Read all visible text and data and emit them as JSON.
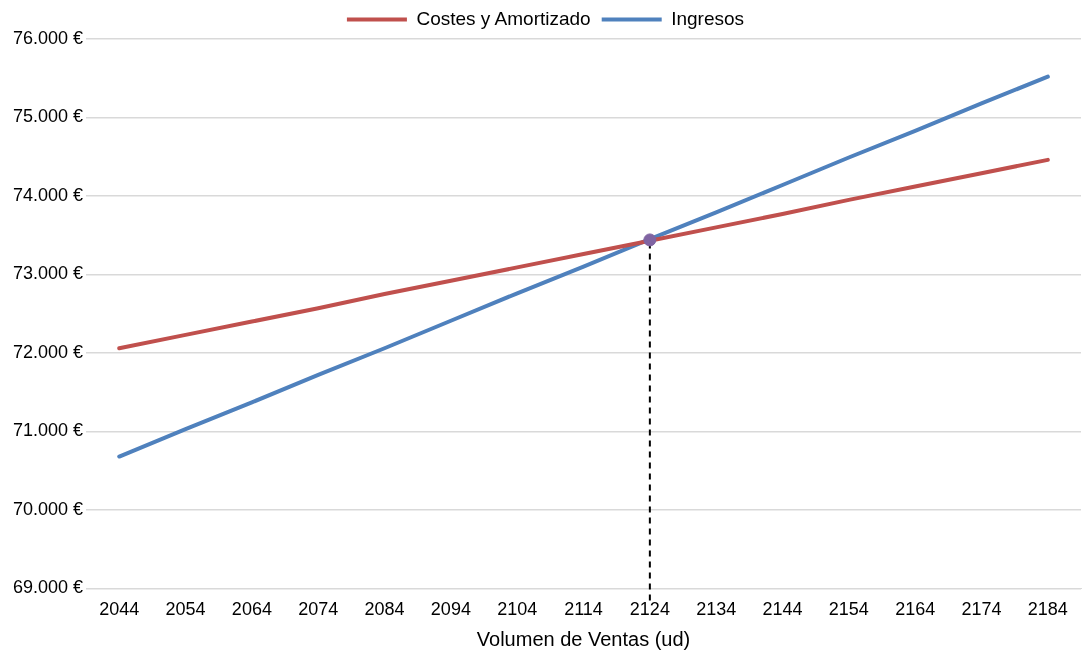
{
  "chart_data": {
    "type": "line",
    "xlabel": "Volumen de Ventas (ud)",
    "categories": [
      "2044",
      "2054",
      "2064",
      "2074",
      "2084",
      "2094",
      "2104",
      "2114",
      "2124",
      "2134",
      "2144",
      "2154",
      "2164",
      "2174",
      "2184"
    ],
    "series": [
      {
        "name": "Costes y Amortizado",
        "color": "#c0504d",
        "values": [
          72060,
          72230,
          72400,
          72570,
          72750,
          72920,
          73090,
          73260,
          73430,
          73600,
          73770,
          73950,
          74120,
          74290,
          74460
        ]
      },
      {
        "name": "Ingresos",
        "color": "#4f81bd",
        "values": [
          70680,
          71030,
          71370,
          71720,
          72060,
          72410,
          72760,
          73100,
          73450,
          73790,
          74140,
          74490,
          74830,
          75180,
          75520
        ]
      },
      {
        "type": "scatter",
        "color": "#8064a2",
        "marker": "circle",
        "values": [
          null,
          null,
          null,
          null,
          null,
          null,
          null,
          null,
          73440,
          null,
          null,
          null,
          null,
          null,
          null
        ]
      }
    ],
    "ref_lines": [
      {
        "axis": "x",
        "value": "2124",
        "color": "#000000",
        "line_style": "dashed"
      }
    ],
    "ylim": [
      69000,
      76000
    ],
    "yticks": [
      {
        "value": 69000,
        "label": "69.000 €"
      },
      {
        "value": 70000,
        "label": "70.000 €"
      },
      {
        "value": 71000,
        "label": "71.000 €"
      },
      {
        "value": 72000,
        "label": "72.000 €"
      },
      {
        "value": 73000,
        "label": "73.000 €"
      },
      {
        "value": 74000,
        "label": "74.000 €"
      },
      {
        "value": 75000,
        "label": "75.000 €"
      },
      {
        "value": 76000,
        "label": "76.000 €"
      }
    ],
    "grid": "y",
    "legend": "top",
    "marker": "none",
    "line_style": "solid"
  }
}
